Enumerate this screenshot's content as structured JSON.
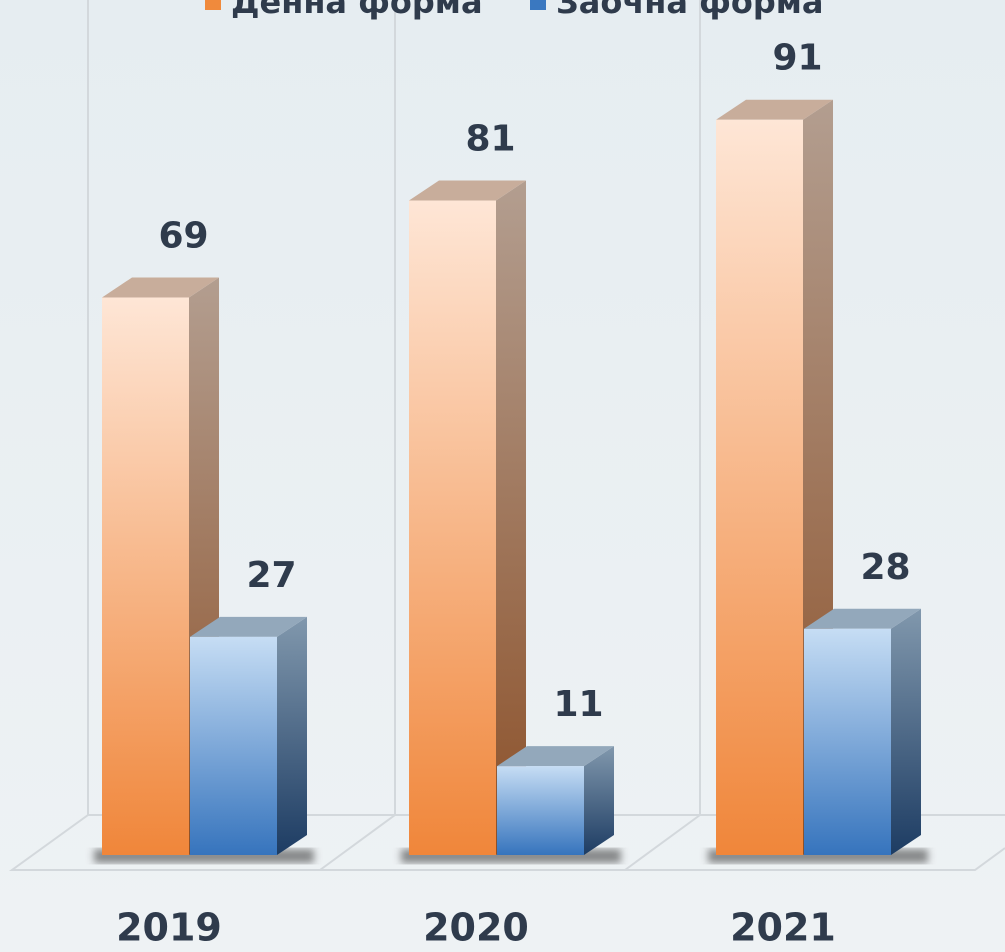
{
  "chart_data": {
    "type": "bar3d",
    "categories": [
      "2019",
      "2020",
      "2021"
    ],
    "series": [
      {
        "name": "Денна форма",
        "color": "#f08a3c",
        "values": [
          69,
          81,
          91
        ]
      },
      {
        "name": "Заочна форма",
        "color": "#3a78c0",
        "values": [
          27,
          11,
          28
        ]
      }
    ],
    "ylim": [
      0,
      100
    ]
  }
}
